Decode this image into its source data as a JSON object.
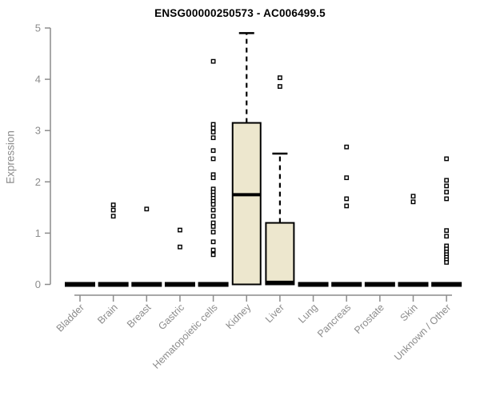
{
  "title": "ENSG00000250573 - AC006499.5",
  "y_axis": {
    "label": "Expression"
  },
  "chart_data": {
    "type": "boxplot",
    "title": "ENSG00000250573 - AC006499.5",
    "xlabel": "",
    "ylabel": "Expression",
    "ylim": [
      0,
      5
    ],
    "yticks": [
      0,
      1,
      2,
      3,
      4,
      5
    ],
    "grid": false,
    "legend": "none",
    "categories": [
      "Bladder",
      "Brain",
      "Breast",
      "Gastric",
      "Hematopoietic cells",
      "Kidney",
      "Liver",
      "Lung",
      "Pancreas",
      "Prostate",
      "Skin",
      "Unknown / Other"
    ],
    "boxes": [
      {
        "category": "Bladder",
        "low": 0,
        "q1": 0,
        "median": 0,
        "q3": 0,
        "high": 0,
        "outliers": []
      },
      {
        "category": "Brain",
        "low": 0,
        "q1": 0,
        "median": 0,
        "q3": 0,
        "high": 0,
        "outliers": [
          1.55,
          1.45,
          1.33
        ]
      },
      {
        "category": "Breast",
        "low": 0,
        "q1": 0,
        "median": 0,
        "q3": 0,
        "high": 0,
        "outliers": [
          1.47
        ]
      },
      {
        "category": "Gastric",
        "low": 0,
        "q1": 0,
        "median": 0,
        "q3": 0,
        "high": 0,
        "outliers": [
          1.06,
          0.73
        ]
      },
      {
        "category": "Hematopoietic cells",
        "low": 0,
        "q1": 0,
        "median": 0,
        "q3": 0,
        "high": 0,
        "outliers": [
          4.35,
          3.12,
          3.05,
          2.97,
          2.86,
          2.61,
          2.45,
          2.14,
          2.08,
          1.86,
          1.8,
          1.74,
          1.68,
          1.62,
          1.56,
          1.45,
          1.33,
          1.2,
          1.13,
          1.02,
          0.83,
          0.67,
          0.58
        ]
      },
      {
        "category": "Kidney",
        "low": 0,
        "q1": 0,
        "median": 1.75,
        "q3": 3.15,
        "high": 4.9,
        "outliers": []
      },
      {
        "category": "Liver",
        "low": 0,
        "q1": 0,
        "median": 0.04,
        "q3": 1.2,
        "high": 2.55,
        "outliers": [
          4.03,
          3.86
        ]
      },
      {
        "category": "Lung",
        "low": 0,
        "q1": 0,
        "median": 0,
        "q3": 0,
        "high": 0,
        "outliers": []
      },
      {
        "category": "Pancreas",
        "low": 0,
        "q1": 0,
        "median": 0,
        "q3": 0,
        "high": 0,
        "outliers": [
          2.68,
          2.08,
          1.67,
          1.53
        ]
      },
      {
        "category": "Prostate",
        "low": 0,
        "q1": 0,
        "median": 0,
        "q3": 0,
        "high": 0,
        "outliers": []
      },
      {
        "category": "Skin",
        "low": 0,
        "q1": 0,
        "median": 0,
        "q3": 0,
        "high": 0,
        "outliers": [
          1.72,
          1.61
        ]
      },
      {
        "category": "Unknown / Other",
        "low": 0,
        "q1": 0,
        "median": 0,
        "q3": 0,
        "high": 0,
        "outliers": [
          2.45,
          2.03,
          1.92,
          1.8,
          1.67,
          1.05,
          0.94,
          0.75,
          0.69,
          0.63,
          0.58,
          0.53,
          0.48,
          0.43
        ]
      }
    ],
    "colors": {
      "box_fill": "#EDE7CE",
      "box_border": "#000000",
      "median": "#000000",
      "outlier": "#000000",
      "axis": "#8C8C8C",
      "tick_label": "#8C8C8C",
      "title": "#000000",
      "background": "#FFFFFF"
    }
  }
}
